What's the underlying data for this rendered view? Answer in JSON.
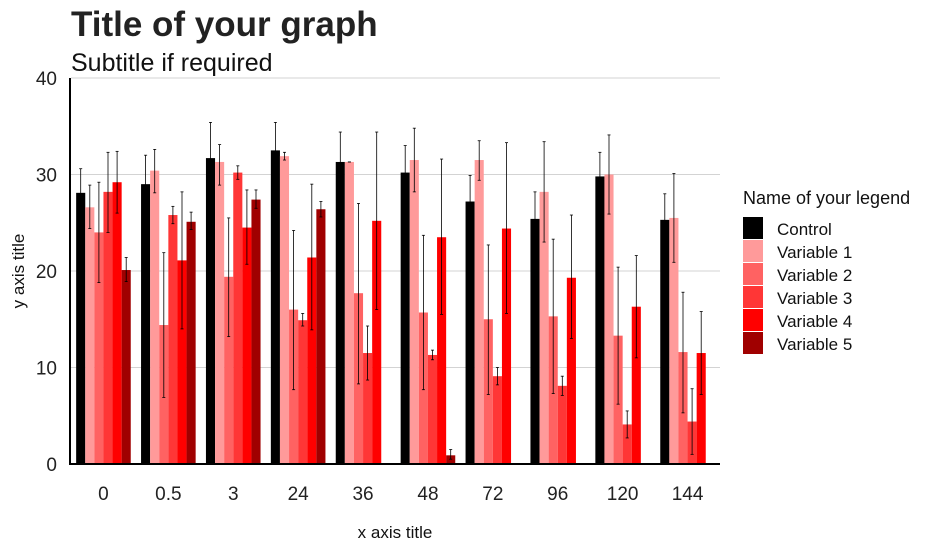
{
  "chart_data": {
    "type": "bar",
    "title": "Title of your graph",
    "subtitle": "Subtitle if required",
    "xlabel": "x axis title",
    "ylabel": "y axis title",
    "ylim": [
      0,
      40
    ],
    "yticks": [
      0,
      10,
      20,
      30,
      40
    ],
    "grid": "horizontal",
    "legend": {
      "title": "Name of your legend",
      "position": "right"
    },
    "categories": [
      "0",
      "0.5",
      "3",
      "24",
      "36",
      "48",
      "72",
      "96",
      "120",
      "144"
    ],
    "series": [
      {
        "name": "Control",
        "color": "#000000",
        "values": [
          28.1,
          29.0,
          31.7,
          32.5,
          31.3,
          30.2,
          27.2,
          25.4,
          29.8,
          25.3
        ],
        "error_low": [
          25.6,
          26.0,
          28.1,
          29.7,
          28.3,
          27.3,
          24.5,
          22.4,
          27.3,
          22.8
        ],
        "error_high": [
          30.6,
          32.0,
          35.4,
          35.4,
          34.4,
          33.0,
          29.9,
          28.2,
          32.3,
          28.0
        ]
      },
      {
        "name": "Variable 1",
        "color": "#ff9a9a",
        "values": [
          26.6,
          30.4,
          31.3,
          31.9,
          31.3,
          31.5,
          31.5,
          28.2,
          30.0,
          25.5
        ],
        "error_low": [
          24.4,
          28.1,
          28.9,
          31.5,
          31.3,
          28.2,
          29.4,
          23.0,
          25.9,
          20.9
        ],
        "error_high": [
          28.9,
          32.6,
          33.1,
          32.3,
          31.3,
          34.8,
          33.5,
          33.4,
          34.1,
          30.1
        ]
      },
      {
        "name": "Variable 2",
        "color": "#ff6262",
        "values": [
          24.0,
          14.4,
          19.4,
          16.0,
          17.7,
          15.7,
          15.0,
          15.3,
          13.3,
          11.6
        ],
        "error_low": [
          18.8,
          6.9,
          13.2,
          7.7,
          8.3,
          7.7,
          7.2,
          7.3,
          6.2,
          5.3
        ],
        "error_high": [
          29.2,
          21.9,
          25.5,
          24.2,
          27.0,
          23.7,
          22.7,
          23.3,
          20.4,
          17.8
        ]
      },
      {
        "name": "Variable 3",
        "color": "#ff3636",
        "values": [
          28.2,
          25.8,
          30.2,
          14.9,
          11.5,
          11.3,
          9.1,
          8.1,
          4.1,
          4.4
        ],
        "error_low": [
          24.0,
          24.9,
          29.5,
          14.3,
          8.7,
          10.8,
          8.2,
          7.1,
          2.7,
          1.0
        ],
        "error_high": [
          32.3,
          26.7,
          30.9,
          15.6,
          14.3,
          11.8,
          10.0,
          9.1,
          5.5,
          7.8
        ]
      },
      {
        "name": "Variable 4",
        "color": "#ff0000",
        "values": [
          29.2,
          21.1,
          24.5,
          21.4,
          25.2,
          23.5,
          24.4,
          19.3,
          16.3,
          11.5
        ],
        "error_low": [
          26.0,
          14.0,
          20.7,
          13.9,
          16.0,
          15.5,
          15.6,
          13.0,
          11.0,
          7.2
        ],
        "error_high": [
          32.4,
          28.2,
          28.4,
          29.0,
          34.4,
          31.6,
          33.3,
          25.8,
          21.6,
          15.8
        ]
      },
      {
        "name": "Variable 5",
        "color": "#a00000",
        "values": [
          20.1,
          25.1,
          27.4,
          26.4,
          null,
          0.9,
          null,
          null,
          null,
          null
        ],
        "error_low": [
          18.9,
          24.3,
          26.5,
          25.6,
          null,
          0.5,
          null,
          null,
          null,
          null
        ],
        "error_high": [
          21.4,
          26.1,
          28.4,
          27.2,
          null,
          1.5,
          null,
          null,
          null,
          null
        ]
      }
    ]
  }
}
